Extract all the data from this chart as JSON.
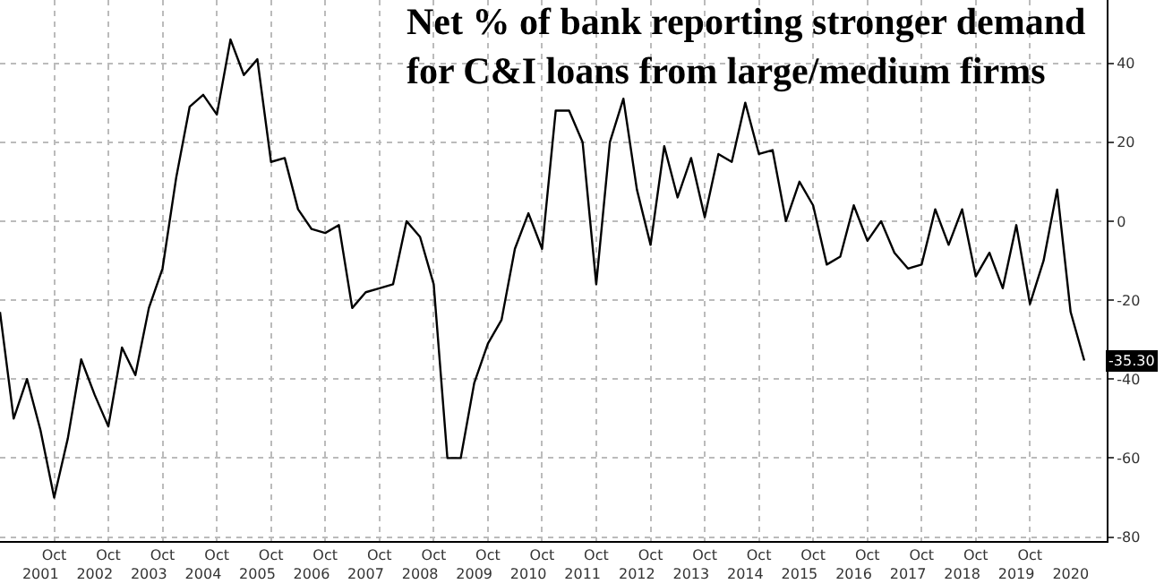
{
  "chart_data": {
    "type": "line",
    "title": "Net % of bank reporting stronger demand\nfor C&I loans from large/medium firms",
    "x": [
      "2000-10",
      "2001-01",
      "2001-04",
      "2001-07",
      "2001-10",
      "2002-01",
      "2002-04",
      "2002-07",
      "2002-10",
      "2003-01",
      "2003-04",
      "2003-07",
      "2003-10",
      "2004-01",
      "2004-04",
      "2004-07",
      "2004-10",
      "2005-01",
      "2005-04",
      "2005-07",
      "2005-10",
      "2006-01",
      "2006-04",
      "2006-07",
      "2006-10",
      "2007-01",
      "2007-04",
      "2007-07",
      "2007-10",
      "2008-01",
      "2008-04",
      "2008-07",
      "2008-10",
      "2009-01",
      "2009-04",
      "2009-07",
      "2009-10",
      "2010-01",
      "2010-04",
      "2010-07",
      "2010-10",
      "2011-01",
      "2011-04",
      "2011-07",
      "2011-10",
      "2012-01",
      "2012-04",
      "2012-07",
      "2012-10",
      "2013-01",
      "2013-04",
      "2013-07",
      "2013-10",
      "2014-01",
      "2014-04",
      "2014-07",
      "2014-10",
      "2015-01",
      "2015-04",
      "2015-07",
      "2015-10",
      "2016-01",
      "2016-04",
      "2016-07",
      "2016-10",
      "2017-01",
      "2017-04",
      "2017-07",
      "2017-10",
      "2018-01",
      "2018-04",
      "2018-07",
      "2018-10",
      "2019-01",
      "2019-04",
      "2019-07",
      "2019-10",
      "2020-01",
      "2020-04",
      "2020-07",
      "2020-10"
    ],
    "series": [
      {
        "color": "#000000",
        "values": [
          -23,
          -50,
          -40,
          -53,
          -70,
          -55,
          -35,
          -44,
          -52,
          -32,
          -39,
          -22,
          -12,
          11,
          29,
          32,
          27,
          46,
          37,
          41,
          15,
          16,
          3,
          -2,
          -3,
          -1,
          -22,
          -18,
          -17,
          -16,
          0,
          -4,
          -16,
          -60,
          -60,
          -41,
          -31,
          -25,
          -7,
          2,
          -7,
          28,
          28,
          20,
          -16,
          20,
          31,
          8,
          -6,
          19,
          6,
          16,
          1,
          17,
          15,
          30,
          17,
          18,
          0,
          10,
          4,
          -11,
          -9,
          4,
          -5,
          0,
          -8,
          -12,
          -11,
          3,
          -6,
          3,
          -14,
          -8,
          -17,
          -1,
          -21,
          -10,
          8,
          -23,
          -35.3
        ]
      }
    ],
    "annotations": [
      {
        "text": "-35.30",
        "x": "2020-10",
        "y": -35.3
      }
    ],
    "xlim": [
      "2000-10",
      "2021-03"
    ],
    "xticks": [
      {
        "value": "2001-10",
        "label": "Oct"
      },
      {
        "value": "2002-10",
        "label": "Oct"
      },
      {
        "value": "2003-10",
        "label": "Oct"
      },
      {
        "value": "2004-10",
        "label": "Oct"
      },
      {
        "value": "2005-10",
        "label": "Oct"
      },
      {
        "value": "2006-10",
        "label": "Oct"
      },
      {
        "value": "2007-10",
        "label": "Oct"
      },
      {
        "value": "2008-10",
        "label": "Oct"
      },
      {
        "value": "2009-10",
        "label": "Oct"
      },
      {
        "value": "2010-10",
        "label": "Oct"
      },
      {
        "value": "2011-10",
        "label": "Oct"
      },
      {
        "value": "2012-10",
        "label": "Oct"
      },
      {
        "value": "2013-10",
        "label": "Oct"
      },
      {
        "value": "2014-10",
        "label": "Oct"
      },
      {
        "value": "2015-10",
        "label": "Oct"
      },
      {
        "value": "2016-10",
        "label": "Oct"
      },
      {
        "value": "2017-10",
        "label": "Oct"
      },
      {
        "value": "2018-10",
        "label": "Oct"
      },
      {
        "value": "2019-10",
        "label": "Oct"
      }
    ],
    "x2lim": [
      "2000-10",
      "2021-03"
    ],
    "x2ticks": [
      {
        "value": "2001-07",
        "label": "2001"
      },
      {
        "value": "2002-07",
        "label": "2002"
      },
      {
        "value": "2003-07",
        "label": "2003"
      },
      {
        "value": "2004-07",
        "label": "2004"
      },
      {
        "value": "2005-07",
        "label": "2005"
      },
      {
        "value": "2006-07",
        "label": "2006"
      },
      {
        "value": "2007-07",
        "label": "2007"
      },
      {
        "value": "2008-07",
        "label": "2008"
      },
      {
        "value": "2009-07",
        "label": "2009"
      },
      {
        "value": "2010-07",
        "label": "2010"
      },
      {
        "value": "2011-07",
        "label": "2011"
      },
      {
        "value": "2012-07",
        "label": "2012"
      },
      {
        "value": "2013-07",
        "label": "2013"
      },
      {
        "value": "2014-07",
        "label": "2014"
      },
      {
        "value": "2015-07",
        "label": "2015"
      },
      {
        "value": "2016-07",
        "label": "2016"
      },
      {
        "value": "2017-07",
        "label": "2017"
      },
      {
        "value": "2018-07",
        "label": "2018"
      },
      {
        "value": "2019-07",
        "label": "2019"
      },
      {
        "value": "2020-07",
        "label": "2020"
      }
    ],
    "ylim": [
      -81,
      56
    ],
    "yticks": [
      -80,
      -60,
      -40,
      -20,
      0,
      20,
      40
    ],
    "grid": true,
    "marker": "none",
    "line_style": "solid"
  }
}
